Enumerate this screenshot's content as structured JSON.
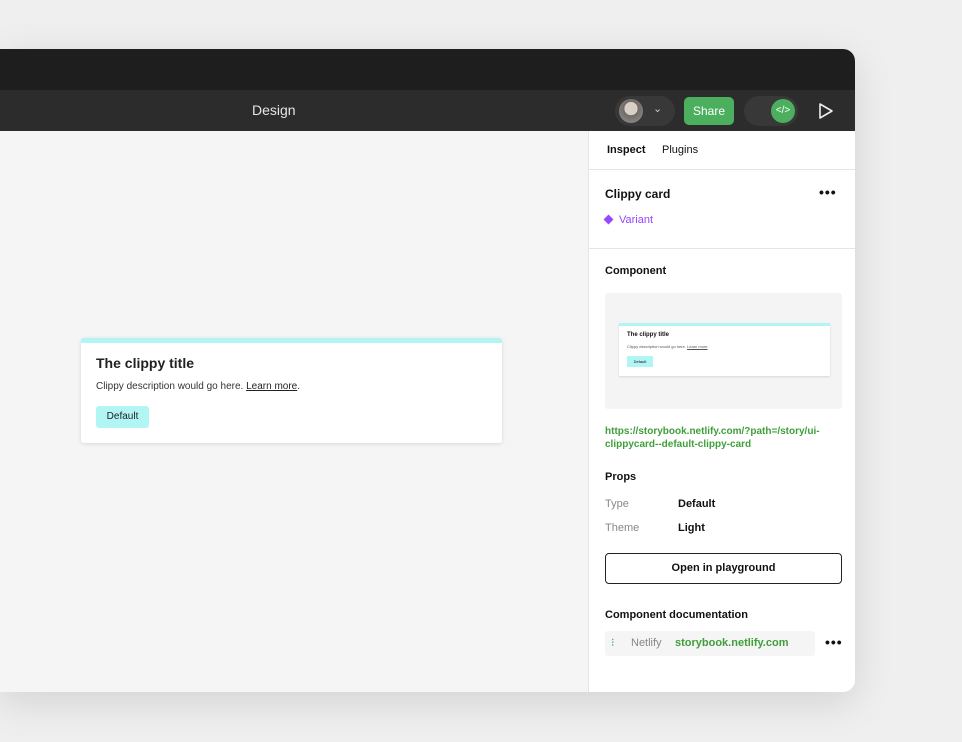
{
  "toolbar": {
    "title": "Design",
    "share_label": "Share",
    "dev_icon": "code-icon"
  },
  "canvas": {
    "card": {
      "title": "The clippy title",
      "description": "Clippy description would go here.",
      "link": "Learn more",
      "period": ".",
      "button": "Default",
      "accent": "#b2f5f5"
    }
  },
  "panel": {
    "tabs": [
      "Inspect",
      "Plugins"
    ],
    "component_name": "Clippy card",
    "variant_label": "Variant",
    "component_heading": "Component",
    "preview": {
      "title": "The clippy title",
      "description": "Clippy description would go here.",
      "link": "Learn more",
      "button": "Default"
    },
    "url_line1": "https://storybook.netlify.com/?path=/story/ui-",
    "url_line2": "clippycard--default-clippy-card",
    "props_heading": "Props",
    "props": [
      {
        "label": "Type",
        "value": "Default"
      },
      {
        "label": "Theme",
        "value": "Light"
      }
    ],
    "playground_button": "Open in playground",
    "docs_heading": "Component documentation",
    "docs": {
      "provider": "Netlify",
      "link": "storybook.netlify.com"
    },
    "more": "•••"
  },
  "colors": {
    "accent_green": "#4caf5e",
    "variant_purple": "#9747ff",
    "link_green": "#3f9f3a"
  }
}
